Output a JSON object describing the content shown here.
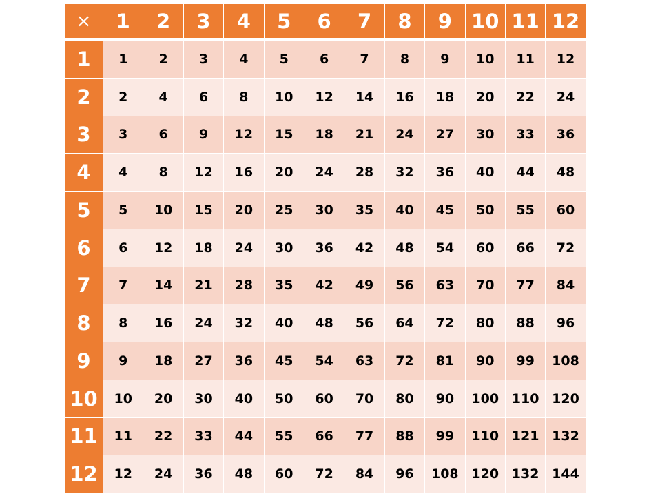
{
  "table": {
    "operator_symbol": "×",
    "column_headers": [
      "1",
      "2",
      "3",
      "4",
      "5",
      "6",
      "7",
      "8",
      "9",
      "10",
      "11",
      "12"
    ],
    "row_headers": [
      "1",
      "2",
      "3",
      "4",
      "5",
      "6",
      "7",
      "8",
      "9",
      "10",
      "11",
      "12"
    ],
    "rows": [
      [
        "1",
        "2",
        "3",
        "4",
        "5",
        "6",
        "7",
        "8",
        "9",
        "10",
        "11",
        "12"
      ],
      [
        "2",
        "4",
        "6",
        "8",
        "10",
        "12",
        "14",
        "16",
        "18",
        "20",
        "22",
        "24"
      ],
      [
        "3",
        "6",
        "9",
        "12",
        "15",
        "18",
        "21",
        "24",
        "27",
        "30",
        "33",
        "36"
      ],
      [
        "4",
        "8",
        "12",
        "16",
        "20",
        "24",
        "28",
        "32",
        "36",
        "40",
        "44",
        "48"
      ],
      [
        "5",
        "10",
        "15",
        "20",
        "25",
        "30",
        "35",
        "40",
        "45",
        "50",
        "55",
        "60"
      ],
      [
        "6",
        "12",
        "18",
        "24",
        "30",
        "36",
        "42",
        "48",
        "54",
        "60",
        "66",
        "72"
      ],
      [
        "7",
        "14",
        "21",
        "28",
        "35",
        "42",
        "49",
        "56",
        "63",
        "70",
        "77",
        "84"
      ],
      [
        "8",
        "16",
        "24",
        "32",
        "40",
        "48",
        "56",
        "64",
        "72",
        "80",
        "88",
        "96"
      ],
      [
        "9",
        "18",
        "27",
        "36",
        "45",
        "54",
        "63",
        "72",
        "81",
        "90",
        "99",
        "108"
      ],
      [
        "10",
        "20",
        "30",
        "40",
        "50",
        "60",
        "70",
        "80",
        "90",
        "100",
        "110",
        "120"
      ],
      [
        "11",
        "22",
        "33",
        "44",
        "55",
        "66",
        "77",
        "88",
        "99",
        "110",
        "121",
        "132"
      ],
      [
        "12",
        "24",
        "36",
        "48",
        "60",
        "72",
        "84",
        "96",
        "108",
        "120",
        "132",
        "144"
      ]
    ]
  },
  "colors": {
    "header_fill": "#ed7d31",
    "header_text": "#ffffff",
    "band_dark": "#f8d5c8",
    "band_light": "#fbe9e3",
    "cell_text": "#000000"
  }
}
